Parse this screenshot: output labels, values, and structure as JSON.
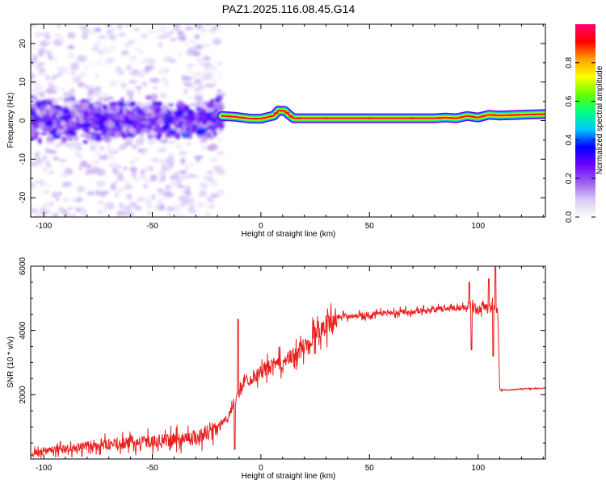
{
  "title": "PAZ1.2025.116.08.45.G14",
  "colors": {
    "snr_line": "#e8201e",
    "colormap": [
      "#ffffff",
      "#d8c8f4",
      "#9a5cf0",
      "#6a00ff",
      "#0000ff",
      "#00c8ff",
      "#00ff80",
      "#66ff00",
      "#ffff00",
      "#ffa000",
      "#ff0000",
      "#ff0070"
    ]
  },
  "chart_data": [
    {
      "type": "heatmap",
      "title": "PAZ1.2025.116.08.45.G14",
      "xlabel": "Height of straight line (km)",
      "ylabel": "Frequency (Hz)",
      "xlim": [
        -106,
        131
      ],
      "ylim": [
        -25,
        25
      ],
      "xticks": [
        -100,
        -50,
        0,
        50,
        100
      ],
      "xtick_labels": [
        "-100",
        "-50",
        "0",
        "50",
        "100"
      ],
      "yticks": [
        -20,
        -10,
        0,
        10,
        20
      ],
      "ytick_labels": [
        "-20",
        "-10",
        "0",
        "10",
        "20"
      ],
      "colorbar": {
        "label": "Normalized spectral amplitude",
        "range": [
          0,
          1
        ],
        "ticks": [
          0.0,
          0.2,
          0.4,
          0.6,
          0.8
        ],
        "tick_labels": [
          "0.0",
          "0.2",
          "0.4",
          "0.6",
          "0.8"
        ]
      },
      "noisy_region_x": [
        -106,
        -18
      ],
      "signal_track": {
        "x": [
          -18,
          -12,
          -5,
          0,
          3,
          6,
          8,
          11,
          13,
          15,
          20,
          40,
          60,
          80,
          85,
          90,
          95,
          100,
          105,
          110,
          120,
          131
        ],
        "frequency": [
          1.2,
          1.0,
          0.5,
          0.5,
          0.9,
          1.3,
          2.6,
          2.5,
          1.5,
          0.6,
          0.6,
          0.6,
          0.6,
          0.6,
          0.8,
          0.6,
          1.2,
          0.8,
          1.5,
          1.3,
          1.5,
          1.7
        ],
        "amplitude": [
          0.45,
          0.55,
          0.6,
          0.75,
          0.8,
          0.85,
          0.9,
          0.9,
          0.85,
          0.95,
          0.95,
          0.95,
          0.95,
          0.95,
          0.85,
          0.8,
          0.75,
          0.7,
          0.8,
          0.85,
          0.85,
          0.8
        ]
      }
    },
    {
      "type": "line",
      "xlabel": "Height of straight line (km)",
      "ylabel": "SNR (10 * v/v)",
      "xlim": [
        -106,
        131
      ],
      "ylim": [
        0,
        6000
      ],
      "xticks": [
        -100,
        -50,
        0,
        50,
        100
      ],
      "xtick_labels": [
        "-100",
        "-50",
        "0",
        "50",
        "100"
      ],
      "yticks": [
        2000,
        4000,
        6000
      ],
      "ytick_labels": [
        "2000",
        "4000",
        "6000"
      ],
      "series": [
        {
          "x": [
            -106,
            -100,
            -90,
            -80,
            -70,
            -60,
            -50,
            -40,
            -30,
            -25,
            -20,
            -15,
            -12,
            -10,
            -8,
            -5,
            0,
            5,
            10,
            15,
            20,
            25,
            30,
            35,
            40,
            50,
            60,
            70,
            80,
            90,
            95,
            97,
            100,
            102,
            105,
            107,
            108,
            109,
            110,
            115,
            120,
            131
          ],
          "y": [
            150,
            250,
            300,
            400,
            450,
            500,
            550,
            600,
            700,
            800,
            1000,
            1300,
            1800,
            2000,
            2400,
            2500,
            2700,
            2900,
            3000,
            3200,
            3500,
            3900,
            4200,
            4400,
            4450,
            4500,
            4550,
            4600,
            4650,
            4700,
            4750,
            4800,
            4600,
            4800,
            4700,
            4750,
            4700,
            4650,
            2150,
            2150,
            2180,
            2200
          ],
          "spikes": [
            {
              "x": -10.5,
              "y": 4350
            },
            {
              "x": -12,
              "y": 300
            },
            {
              "x": 96,
              "y": 5500
            },
            {
              "x": 97,
              "y": 3400
            },
            {
              "x": 105,
              "y": 5600
            },
            {
              "x": 107,
              "y": 3200
            },
            {
              "x": 108,
              "y": 6000
            }
          ]
        }
      ]
    }
  ]
}
